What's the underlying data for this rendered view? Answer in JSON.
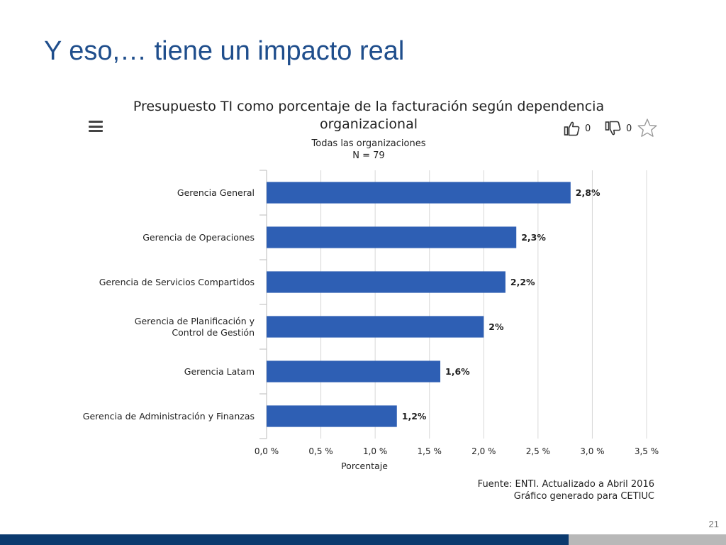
{
  "slide": {
    "title": "Y eso,… tiene un impacto real",
    "page_number": "21"
  },
  "toolbar": {
    "menu_icon": "menu-icon",
    "like_icon": "thumbs-up-icon",
    "like_count": "0",
    "dislike_icon": "thumbs-down-icon",
    "dislike_count": "0",
    "favorite_icon": "star-icon"
  },
  "source": {
    "line1": "Fuente: ENTI. Actualizado a Abril 2016",
    "line2": "Gráfico generado para CETIUC"
  },
  "colors": {
    "title": "#1f4e8c",
    "bar": "#2e5fb4",
    "footer_blue": "#0b3a6e",
    "footer_gray": "#b8b8b8"
  },
  "chart_data": {
    "type": "bar",
    "orientation": "horizontal",
    "title": [
      "Presupuesto TI como porcentaje de la facturación según dependencia",
      "organizacional"
    ],
    "subtitle": [
      "Todas las organizaciones",
      "N = 79"
    ],
    "xlabel": "Porcentaje",
    "ylabel": "",
    "categories": [
      [
        "Gerencia General"
      ],
      [
        "Gerencia de Operaciones"
      ],
      [
        "Gerencia de Servicios Compartidos"
      ],
      [
        "Gerencia de Planificación y",
        "Control de Gestión"
      ],
      [
        "Gerencia Latam"
      ],
      [
        "Gerencia de Administración y Finanzas"
      ]
    ],
    "values": [
      2.8,
      2.3,
      2.2,
      2.0,
      1.6,
      1.2
    ],
    "data_labels": [
      "2,8%",
      "2,3%",
      "2,2%",
      "2%",
      "1,6%",
      "1,2%"
    ],
    "xlim": [
      0,
      3.5
    ],
    "x_ticks": [
      0,
      0.5,
      1.0,
      1.5,
      2.0,
      2.5,
      3.0,
      3.5
    ],
    "x_tick_labels": [
      "0,0 %",
      "0,5 %",
      "1,0 %",
      "1,5 %",
      "2,0 %",
      "2,5 %",
      "3,0 %",
      "3,5 %"
    ],
    "grid": true,
    "legend": "none"
  }
}
